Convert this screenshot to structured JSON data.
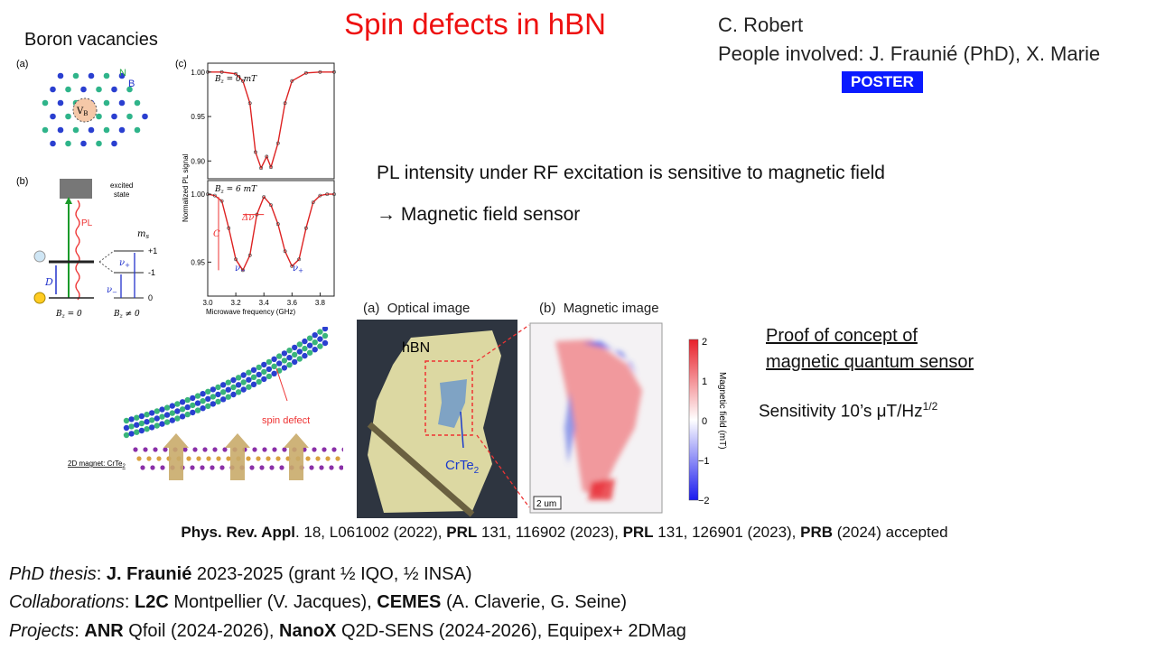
{
  "title": "Spin defects in hBN",
  "author": {
    "line1": "C. Robert",
    "line2": "People involved: J. Fraunié (PhD), X. Marie"
  },
  "poster_badge": "POSTER",
  "boron_vacancies": "Boron vacancies",
  "fig_a_left": {
    "label": "(a)",
    "atom_n": "N",
    "atom_b": "B",
    "vb": "V",
    "vb_sub": "B"
  },
  "fig_b_left": {
    "label": "(b)",
    "excited_state": "excited\nstate",
    "excited_line1": "excited",
    "excited_line2": "state",
    "pl": "PL",
    "ms": "m",
    "ms_sub": "s",
    "level_p1": "+1",
    "level_m1": "-1",
    "level_0": "0",
    "D": "D",
    "nu_plus": "ν",
    "nu_minus": "ν",
    "bz0": "B",
    "bz0_rest": " = 0",
    "bzn": "B",
    "bzn_rest": " ≠ 0"
  },
  "fig_c": {
    "label": "(c)",
    "ylabel": "Normalized PL signal",
    "xlabel": "Microwave frequency (GHz)",
    "top_panel_label": "B",
    "top_panel_value": " = 0 mT",
    "bottom_panel_label": "B",
    "bottom_panel_value": " = 6 mT",
    "top_yticks": [
      "1.00",
      "0.95",
      "0.90"
    ],
    "bottom_yticks": [
      "1.00",
      "0.95"
    ],
    "xticks": [
      "3.0",
      "3.2",
      "3.4",
      "3.6",
      "3.8"
    ],
    "delta_nu": "Δν",
    "C": "C",
    "nu_minus": "ν",
    "nu_plus": "ν",
    "minus": "−",
    "plus": "+"
  },
  "chart_data": [
    {
      "type": "line",
      "title": "",
      "panel": "B_z = 0 mT",
      "xlabel": "Microwave frequency (GHz)",
      "ylabel": "Normalized PL signal",
      "xlim": [
        3.0,
        3.9
      ],
      "ylim": [
        0.88,
        1.01
      ],
      "series": [
        {
          "x": [
            3.0,
            3.1,
            3.2,
            3.25,
            3.3,
            3.34,
            3.38,
            3.42,
            3.45,
            3.5,
            3.55,
            3.6,
            3.7,
            3.8,
            3.9
          ],
          "values": [
            1.0,
            1.0,
            0.998,
            0.99,
            0.965,
            0.91,
            0.892,
            0.905,
            0.893,
            0.92,
            0.965,
            0.99,
            0.999,
            1.0,
            1.0
          ]
        }
      ]
    },
    {
      "type": "line",
      "title": "",
      "panel": "B_z = 6 mT",
      "xlabel": "Microwave frequency (GHz)",
      "ylabel": "Normalized PL signal",
      "xlim": [
        3.0,
        3.9
      ],
      "ylim": [
        0.925,
        1.01
      ],
      "series": [
        {
          "x": [
            3.0,
            3.05,
            3.1,
            3.15,
            3.2,
            3.25,
            3.3,
            3.35,
            3.4,
            3.45,
            3.5,
            3.55,
            3.6,
            3.65,
            3.7,
            3.75,
            3.8,
            3.85,
            3.9
          ],
          "values": [
            1.0,
            0.999,
            0.995,
            0.975,
            0.952,
            0.944,
            0.955,
            0.985,
            0.998,
            0.992,
            0.978,
            0.958,
            0.947,
            0.952,
            0.975,
            0.994,
            0.999,
            1.0,
            1.0
          ]
        }
      ]
    }
  ],
  "text1": "PL intensity under RF excitation is sensitive to magnetic field",
  "text2": "Magnetic field sensor",
  "arrow_glyph": "→",
  "optical": {
    "label": "(a)",
    "title": "Optical image",
    "hbn": "hBN",
    "crte": "CrTe",
    "crte_sub": "2"
  },
  "magnetic": {
    "label": "(b)",
    "title": "Magnetic image",
    "colorbar_label": "Magnetic field (mT)",
    "ticks": [
      "2",
      "1",
      "0",
      "−1",
      "−2"
    ],
    "scale": "2 um",
    "colors": {
      "positive": "#e8202a",
      "zero": "#ffffff",
      "negative": "#1a1aee"
    }
  },
  "proof": {
    "line1": "Proof of concept of",
    "line2": "magnetic quantum sensor"
  },
  "sensitivity": {
    "text": "Sensitivity 10’s μT/Hz",
    "sup": "1/2"
  },
  "schematic": {
    "spin_defect": "spin defect",
    "magnet_label": "2D magnet: CrTe",
    "magnet_sub": "2"
  },
  "references": [
    {
      "bold": "Phys. Rev. Appl",
      "rest": ". 18, L061002 (2022), "
    },
    {
      "bold": "PRL",
      "rest": " 131, 116902 (2023), "
    },
    {
      "bold": "PRL",
      "rest": " 131, 126901 (2023), "
    },
    {
      "bold": "PRB",
      "rest": " (2024) accepted"
    }
  ],
  "footer": {
    "phd_label": "PhD thesis",
    "phd_bold": "J. Fraunié",
    "phd_rest": " 2023-2025 (grant ½ IQO, ½ INSA)",
    "collab_label": "Collaborations",
    "collab_b1": "L2C",
    "collab_r1": " Montpellier (V. Jacques), ",
    "collab_b2": "CEMES",
    "collab_r2": " (A. Claverie, G. Seine)",
    "proj_label": "Projects",
    "proj_b1": "ANR",
    "proj_r1": " Qfoil (2024-2026), ",
    "proj_b2": "NanoX",
    "proj_r2": " Q2D-SENS (2024-2026), Equipex+ 2DMag",
    "colon": ": "
  }
}
